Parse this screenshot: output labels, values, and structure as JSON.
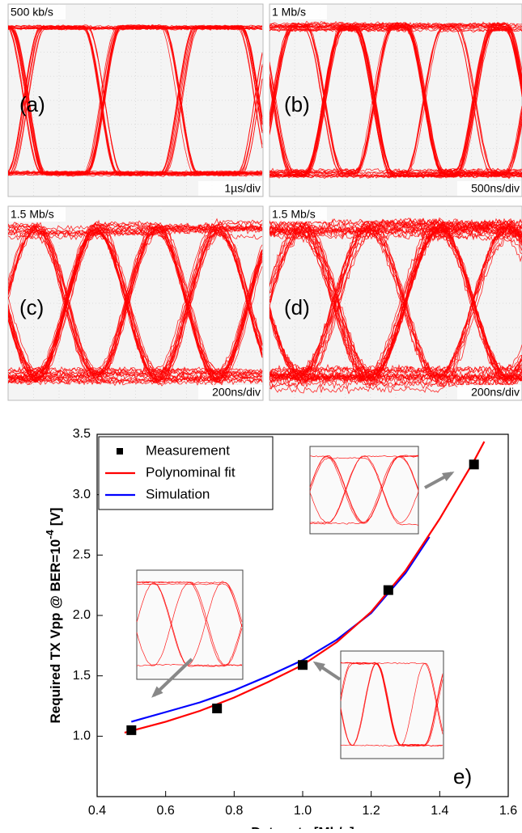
{
  "panels": [
    {
      "rate": "500 kb/s",
      "label": "(a)",
      "scale": "1µs/div"
    },
    {
      "rate": "1 Mb/s",
      "label": "(b)",
      "scale": "500ns/div"
    },
    {
      "rate": "1.5 Mb/s",
      "label": "(c)",
      "scale": "200ns/div"
    },
    {
      "rate": "1.5 Mb/s",
      "label": "(d)",
      "scale": "200ns/div"
    }
  ],
  "chart_data": {
    "type": "scatter",
    "xlabel": "Data rate [Mb/s]",
    "ylabel": "Required TX Vpp @ BER=10",
    "ylabel_exponent": "-4",
    "ylabel_unit": "[V]",
    "annotation": "e)",
    "xlim": [
      0.4,
      1.6
    ],
    "xticks": [
      0.4,
      0.6,
      0.8,
      {
        "value": 1.0,
        "label": "1.0"
      },
      1.2,
      1.4,
      1.6
    ],
    "ylim": [
      0.5,
      3.5
    ],
    "yticks": [
      {
        "value": 1.0,
        "label": "1.0"
      },
      1.5,
      {
        "value": 2.0,
        "label": "2.0"
      },
      2.5,
      {
        "value": 3.0,
        "label": "3.0"
      },
      3.5
    ],
    "legend": "upper left",
    "series": [
      {
        "name": "Measurement",
        "mode": "markers",
        "color": "#000000",
        "x": [
          0.5,
          0.75,
          1.0,
          1.25,
          1.5
        ],
        "values": [
          1.05,
          1.23,
          1.59,
          2.21,
          3.25
        ]
      },
      {
        "name": "Polynominal fit",
        "mode": "line",
        "color": "#ff0000",
        "x": [
          0.48,
          0.6,
          0.7,
          0.8,
          0.9,
          1.0,
          1.1,
          1.2,
          1.3,
          1.4,
          1.5,
          1.53
        ],
        "values": [
          1.03,
          1.12,
          1.21,
          1.32,
          1.45,
          1.59,
          1.78,
          2.03,
          2.37,
          2.8,
          3.28,
          3.44
        ]
      },
      {
        "name": "Simulation",
        "mode": "line",
        "color": "#0000ff",
        "x": [
          0.5,
          0.6,
          0.7,
          0.8,
          0.9,
          1.0,
          1.1,
          1.2,
          1.3,
          1.37
        ],
        "values": [
          1.12,
          1.2,
          1.28,
          1.38,
          1.5,
          1.63,
          1.8,
          2.02,
          2.35,
          2.65
        ]
      }
    ]
  }
}
